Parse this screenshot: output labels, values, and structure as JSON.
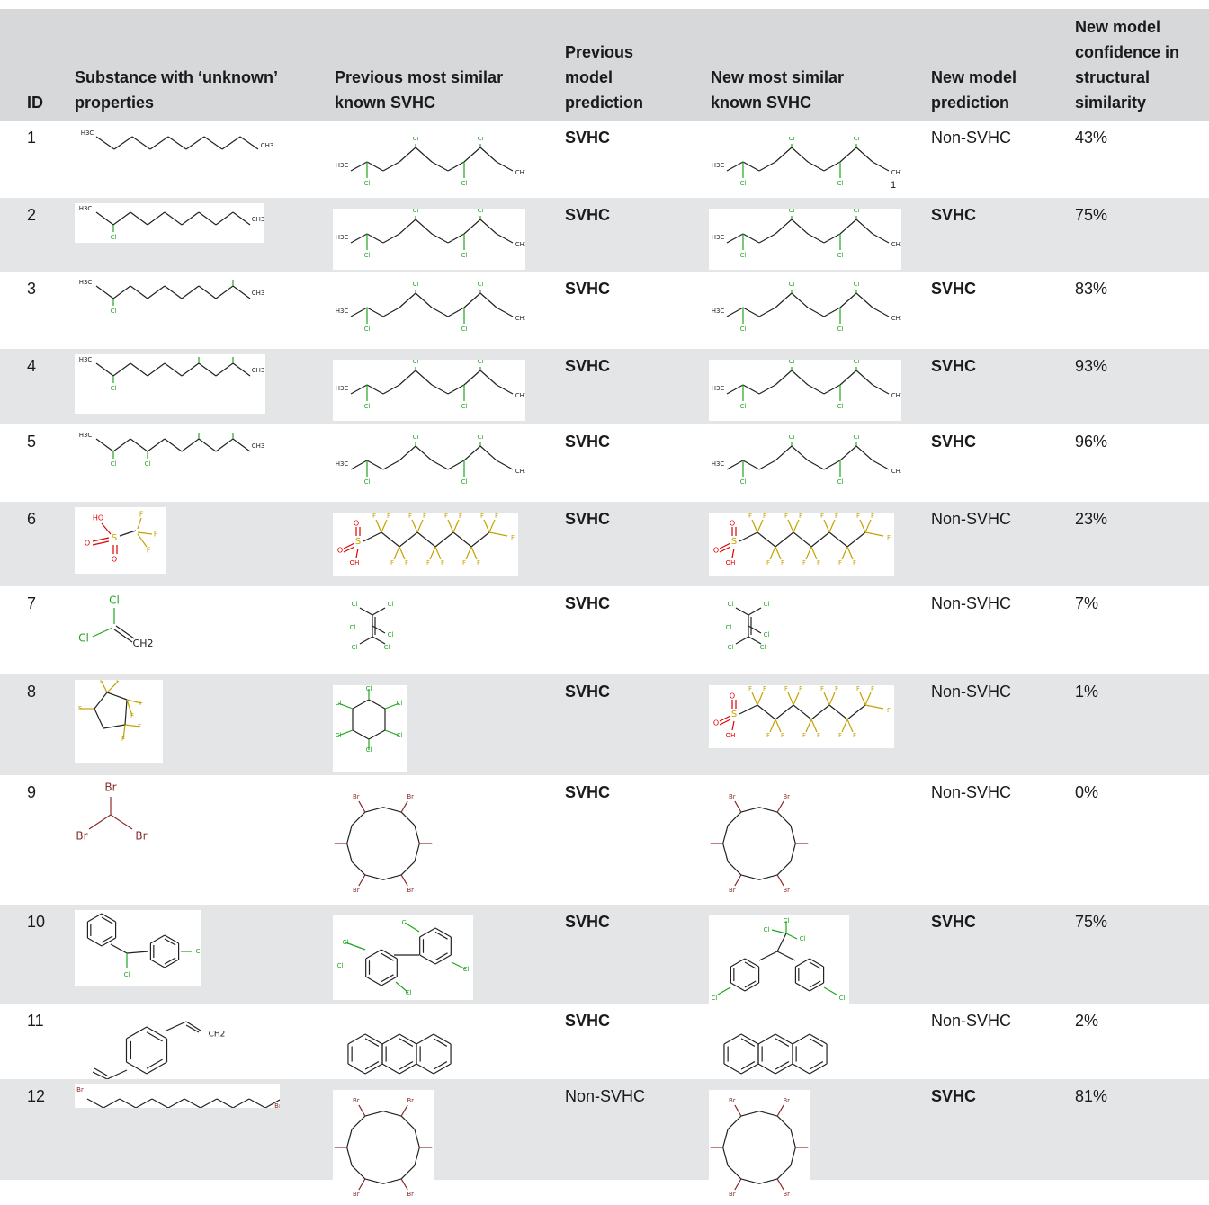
{
  "columns": [
    "ID",
    "Substance with ‘unknown’\nproperties",
    "Previous most similar\nknown SVHC",
    "Previous\nmodel\nprediction",
    "New most similar\nknown SVHC",
    "New model\nprediction",
    "New model\nconfidence in\nstructural\nsimilarity"
  ],
  "rows": [
    {
      "id": "1",
      "substance": "decane",
      "prev_svhc": "tetrachlorodecane",
      "prev_pred": "SVHC",
      "new_svhc": "tetrachlorodecane",
      "new_pred": "Non-SVHC",
      "confidence": "43%",
      "note": "1"
    },
    {
      "id": "2",
      "substance": "2-chlorodecane",
      "prev_svhc": "tetrachlorodecane",
      "prev_pred": "SVHC",
      "new_svhc": "tetrachlorodecane",
      "new_pred": "SVHC",
      "confidence": "75%",
      "note": ""
    },
    {
      "id": "3",
      "substance": "2,9-dichlorodecane",
      "prev_svhc": "tetrachlorodecane",
      "prev_pred": "SVHC",
      "new_svhc": "tetrachlorodecane",
      "new_pred": "SVHC",
      "confidence": "83%",
      "note": ""
    },
    {
      "id": "4",
      "substance": "trichlorodecane",
      "prev_svhc": "tetrachlorodecane",
      "prev_pred": "SVHC",
      "new_svhc": "tetrachlorodecane",
      "new_pred": "SVHC",
      "confidence": "93%",
      "note": ""
    },
    {
      "id": "5",
      "substance": "tetrachlorodecane isomer",
      "prev_svhc": "tetrachlorodecane",
      "prev_pred": "SVHC",
      "new_svhc": "tetrachlorodecane",
      "new_pred": "SVHC",
      "confidence": "96%",
      "note": ""
    },
    {
      "id": "6",
      "substance": "triflic acid",
      "prev_svhc": "perfluorohexane sulfonic acid",
      "prev_pred": "SVHC",
      "new_svhc": "perfluorohexane sulfonic acid",
      "new_pred": "Non-SVHC",
      "confidence": "23%",
      "note": ""
    },
    {
      "id": "7",
      "substance": "vinylidene chloride",
      "prev_svhc": "hexachlorobutadiene",
      "prev_pred": "SVHC",
      "new_svhc": "hexachlorobutadiene",
      "new_pred": "Non-SVHC",
      "confidence": "7%",
      "note": ""
    },
    {
      "id": "8",
      "substance": "pentafluorocyclopentane",
      "prev_svhc": "hexachlorocyclohexane",
      "prev_pred": "SVHC",
      "new_svhc": "perfluorohexane sulfonic acid",
      "new_pred": "Non-SVHC",
      "confidence": "1%",
      "note": ""
    },
    {
      "id": "9",
      "substance": "bromoform",
      "prev_svhc": "hexabromocyclododecane",
      "prev_pred": "SVHC",
      "new_svhc": "hexabromocyclododecane",
      "new_pred": "Non-SVHC",
      "confidence": "0%",
      "note": ""
    },
    {
      "id": "10",
      "substance": "chlorobenzhydryl",
      "prev_svhc": "tetrachlorobiphenyl",
      "prev_pred": "SVHC",
      "new_svhc": "DDT",
      "new_pred": "SVHC",
      "confidence": "75%",
      "note": ""
    },
    {
      "id": "11",
      "substance": "divinylbenzene",
      "prev_svhc": "anthracene",
      "prev_pred": "SVHC",
      "new_svhc": "anthracene",
      "new_pred": "Non-SVHC",
      "confidence": "2%",
      "note": ""
    },
    {
      "id": "12",
      "substance": "dibromododecane",
      "prev_svhc": "hexabromocyclododecane",
      "prev_pred": "Non-SVHC",
      "new_svhc": "hexabromocyclododecane",
      "new_pred": "SVHC",
      "confidence": "81%",
      "note": ""
    }
  ]
}
